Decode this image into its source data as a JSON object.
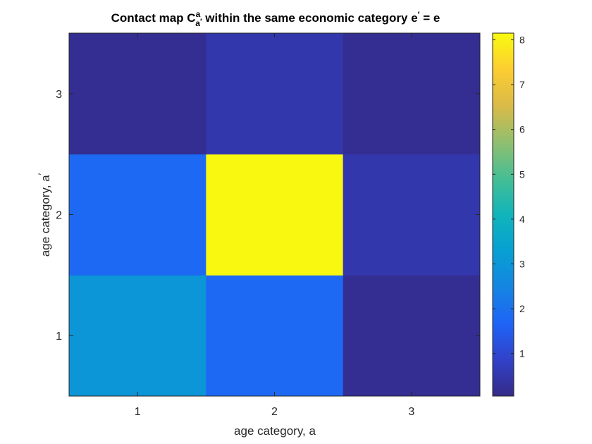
{
  "chart_data": {
    "type": "heatmap",
    "title": {
      "prefix": "Contact map C",
      "sup": "a",
      "sub": "a",
      "sub_prime": "′",
      "suffix": " within the same economic category e",
      "eq_prime": "′",
      "eq_tail": " = e"
    },
    "xlabel": "age category, a",
    "ylabel": {
      "main": "age category, a",
      "prime": "′"
    },
    "x_categories": [
      "1",
      "2",
      "3"
    ],
    "y_categories": [
      "1",
      "2",
      "3"
    ],
    "values": [
      [
        3.0,
        1.8,
        0.2
      ],
      [
        1.8,
        8.1,
        0.5
      ],
      [
        0.2,
        0.5,
        0.2
      ]
    ],
    "colormap": "parula",
    "colorbar": {
      "ticks": [
        1,
        2,
        3,
        4,
        5,
        6,
        7,
        8
      ],
      "tick_labels": [
        "1",
        "2",
        "3",
        "4",
        "5",
        "6",
        "7",
        "8"
      ],
      "range": [
        0.05,
        8.15
      ],
      "placement": "right"
    },
    "grid": false
  }
}
